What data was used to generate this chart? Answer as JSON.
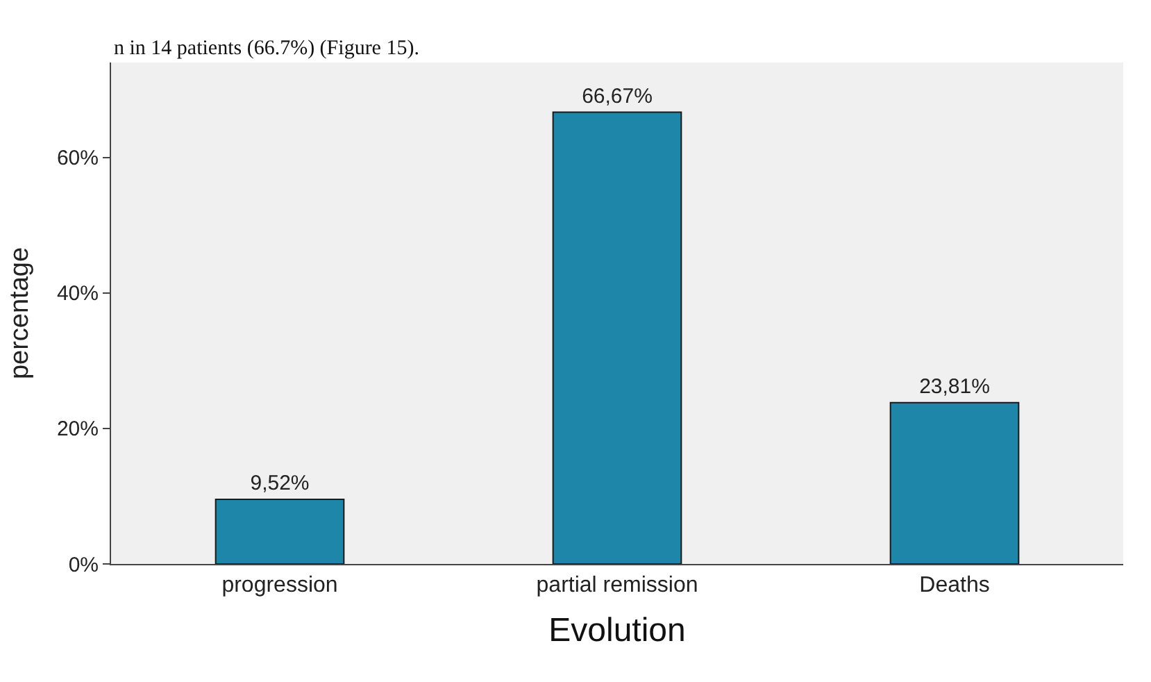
{
  "chart_data": {
    "type": "bar",
    "xlabel": "Evolution",
    "ylabel": "percentage",
    "annotations": [
      "n in 14 patients (66.7%) (Figure 15)."
    ],
    "categories": [
      "progression",
      "partial remission",
      "Deaths"
    ],
    "values": [
      9.52,
      66.67,
      23.81
    ],
    "color": "#1e86a8",
    "value_labels": [
      "9,52%",
      "66,67%",
      "23,81%"
    ],
    "ylim": [
      0,
      74
    ],
    "yticks": [
      {
        "value": 0,
        "label": "0%"
      },
      {
        "value": 20,
        "label": "20%"
      },
      {
        "value": 40,
        "label": "40%"
      },
      {
        "value": 60,
        "label": "60%"
      }
    ],
    "grid": false,
    "legend": false
  }
}
